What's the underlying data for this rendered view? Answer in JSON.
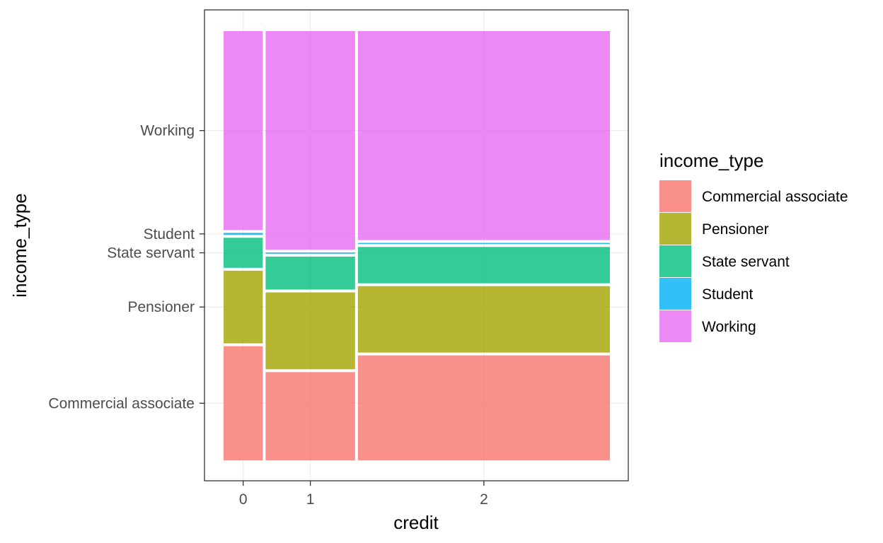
{
  "chart_data": {
    "type": "mosaic",
    "xlabel": "credit",
    "ylabel": "income_type",
    "categories": [
      "0",
      "1",
      "2"
    ],
    "column_shares": [
      0.103,
      0.235,
      0.662
    ],
    "y_levels": [
      "Commercial associate",
      "Pensioner",
      "State servant",
      "Student",
      "Working"
    ],
    "series": [
      {
        "name": "Commercial associate",
        "color": "#F8766D",
        "values": [
          0.273,
          0.211,
          0.251
        ]
      },
      {
        "name": "Pensioner",
        "color": "#A3A500",
        "values": [
          0.174,
          0.184,
          0.159
        ]
      },
      {
        "name": "State servant",
        "color": "#00BF7D",
        "values": [
          0.072,
          0.079,
          0.087
        ]
      },
      {
        "name": "Student",
        "color": "#00B0F6",
        "values": [
          0.005,
          0.003,
          0.003
        ]
      },
      {
        "name": "Working",
        "color": "#E76BF3",
        "values": [
          0.476,
          0.523,
          0.5
        ]
      }
    ],
    "y_tick_labels": [
      "Commercial associate",
      "Pensioner",
      "State servant",
      "Student",
      "Working"
    ],
    "legend": {
      "title": "income_type",
      "placement": "right",
      "entries": [
        "Commercial associate",
        "Pensioner",
        "State servant",
        "Student",
        "Working"
      ]
    },
    "grid": true,
    "fill_alpha": 0.8
  }
}
